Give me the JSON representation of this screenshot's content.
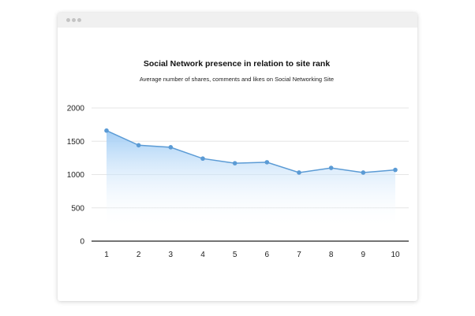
{
  "window": {
    "controls": [
      "window-dot-icon",
      "window-dot-icon",
      "window-dot-icon"
    ]
  },
  "chart_data": {
    "type": "area",
    "title": "Social Network presence in relation to site rank",
    "subtitle": "Average number of shares, comments and likes on Social Networking Site",
    "xlabel": "",
    "ylabel": "",
    "x": [
      1,
      2,
      3,
      4,
      5,
      6,
      7,
      8,
      9,
      10
    ],
    "x_tick_labels": [
      "1",
      "2",
      "3",
      "4",
      "5",
      "6",
      "7",
      "8",
      "9",
      "10"
    ],
    "values": [
      1660,
      1440,
      1410,
      1240,
      1170,
      1185,
      1030,
      1100,
      1030,
      1070
    ],
    "y_ticks": [
      0,
      500,
      1000,
      1500,
      2000
    ],
    "y_tick_labels": [
      "0",
      "500",
      "1000",
      "1500",
      "2000"
    ],
    "ylim": [
      0,
      2000
    ],
    "grid": true,
    "line_color": "#5b9bd5",
    "fill_color": "#9ecbf5"
  }
}
